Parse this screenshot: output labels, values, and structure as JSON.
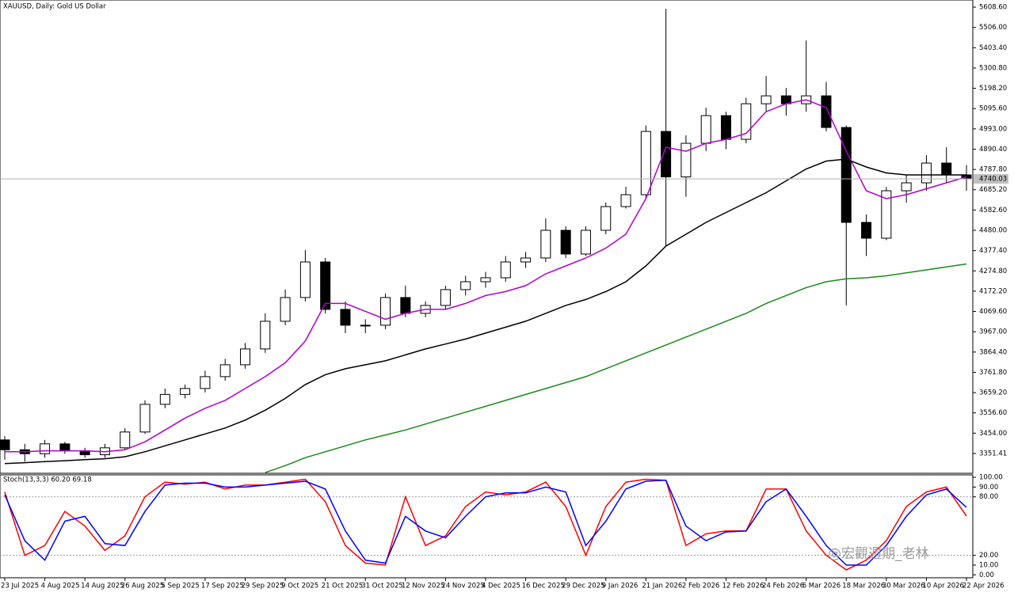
{
  "chart_data": [
    {
      "type": "candlestick",
      "title": "XAUUSD, Daily: Gold US Dollar",
      "categories": [
        "23 Jul 2025",
        null,
        "4 Aug 2025",
        null,
        "14 Aug 2025",
        null,
        "26 Aug 2025",
        null,
        "5 Sep 2025",
        null,
        "17 Sep 2025",
        null,
        "29 Sep 2025",
        null,
        "9 Oct 2025",
        null,
        "21 Oct 2025",
        null,
        "31 Oct 2025",
        null,
        "12 Nov 2025",
        null,
        "24 Nov 2025",
        null,
        "4 Dec 2025",
        null,
        "16 Dec 2025",
        null,
        "29 Dec 2025",
        null,
        "9 Jan 2026",
        null,
        "21 Jan 2026",
        null,
        "2 Feb 2026",
        null,
        "12 Feb 2026",
        null,
        "24 Feb 2026",
        null,
        "6 Mar 2026",
        null,
        "18 Mar 2026",
        null,
        "30 Mar 2026",
        null,
        "10 Apr 2026",
        null,
        "22 Apr 2026"
      ],
      "open": [
        3420,
        3370,
        3350,
        3400,
        3365,
        3345,
        3380,
        3460,
        3600,
        3650,
        3680,
        3740,
        3800,
        3880,
        4020,
        4140,
        4320,
        4080,
        4000,
        4000,
        4140,
        4060,
        4100,
        4180,
        4220,
        4240,
        4320,
        4340,
        4480,
        4360,
        4480,
        4600,
        4660,
        4980,
        4750,
        4920,
        5060,
        4940,
        5120,
        5160,
        5120,
        5160,
        5000,
        4520,
        4440,
        4680,
        4720,
        4820,
        4760
      ],
      "high": [
        3440,
        3400,
        3420,
        3410,
        3380,
        3400,
        3480,
        3620,
        3680,
        3700,
        3770,
        3830,
        3910,
        4060,
        4180,
        4380,
        4340,
        4120,
        4030,
        4160,
        4200,
        4120,
        4200,
        4250,
        4270,
        4350,
        4370,
        4540,
        4500,
        4500,
        4620,
        4700,
        5010,
        5600,
        4960,
        5100,
        5080,
        5150,
        5260,
        5200,
        5440,
        5230,
        5010,
        4560,
        4700,
        4760,
        4860,
        4900,
        4810
      ],
      "low": [
        3320,
        3310,
        3330,
        3350,
        3330,
        3330,
        3370,
        3450,
        3580,
        3630,
        3660,
        3720,
        3780,
        3860,
        4000,
        4120,
        4060,
        3960,
        3960,
        3980,
        4040,
        4040,
        4080,
        4150,
        4190,
        4220,
        4290,
        4320,
        4340,
        4350,
        4460,
        4590,
        4640,
        4400,
        4650,
        4880,
        4890,
        4920,
        5080,
        5060,
        5080,
        4980,
        4100,
        4350,
        4430,
        4620,
        4680,
        4720,
        4680
      ],
      "close": [
        3370,
        3350,
        3400,
        3365,
        3345,
        3380,
        3460,
        3600,
        3650,
        3680,
        3740,
        3800,
        3880,
        4020,
        4140,
        4320,
        4080,
        4000,
        4000,
        4140,
        4060,
        4100,
        4180,
        4220,
        4240,
        4320,
        4340,
        4480,
        4360,
        4480,
        4600,
        4660,
        4980,
        4750,
        4920,
        5060,
        4940,
        5120,
        5160,
        5120,
        5160,
        5000,
        4520,
        4440,
        4680,
        4720,
        4820,
        4760,
        4740
      ],
      "up_color": "#ffffff",
      "down_color": "#000000",
      "lines": [
        {
          "color": "#b000d0",
          "values": [
            3360,
            3360,
            3365,
            3365,
            3365,
            3360,
            3370,
            3410,
            3470,
            3530,
            3580,
            3620,
            3680,
            3740,
            3810,
            3920,
            4110,
            4110,
            4070,
            4030,
            4060,
            4080,
            4080,
            4110,
            4150,
            4170,
            4200,
            4260,
            4300,
            4340,
            4390,
            4460,
            4640,
            4900,
            4880,
            4920,
            4940,
            4970,
            5080,
            5120,
            5140,
            5100,
            4880,
            4680,
            4640,
            4660,
            4690,
            4720,
            4750
          ]
        },
        {
          "color": "#000000",
          "values": [
            3300,
            3305,
            3310,
            3315,
            3320,
            3325,
            3335,
            3360,
            3390,
            3420,
            3450,
            3480,
            3520,
            3570,
            3630,
            3700,
            3750,
            3780,
            3800,
            3820,
            3850,
            3880,
            3905,
            3930,
            3960,
            3990,
            4020,
            4060,
            4100,
            4130,
            4170,
            4220,
            4300,
            4400,
            4460,
            4520,
            4570,
            4620,
            4670,
            4730,
            4790,
            4830,
            4840,
            4800,
            4770,
            4760,
            4760,
            4760,
            4760
          ]
        },
        {
          "color": "#1a8a1a",
          "values": [
            null,
            null,
            null,
            null,
            null,
            null,
            null,
            null,
            null,
            null,
            null,
            null,
            null,
            3255,
            3290,
            3330,
            3360,
            3390,
            3420,
            3445,
            3470,
            3500,
            3530,
            3560,
            3590,
            3620,
            3650,
            3680,
            3710,
            3740,
            3780,
            3820,
            3860,
            3900,
            3940,
            3980,
            4020,
            4060,
            4110,
            4150,
            4190,
            4220,
            4235,
            4240,
            4250,
            4265,
            4280,
            4295,
            4310
          ]
        }
      ],
      "current_price": 4740.03,
      "ylim": [
        3251.2,
        5644.7
      ],
      "yticks": [
        {
          "value": 5608.6,
          "label": "5608.60"
        },
        {
          "value": 5506,
          "label": "5506.00"
        },
        {
          "value": 5403.4,
          "label": "5403.40"
        },
        {
          "value": 5300.8,
          "label": "5300.80"
        },
        {
          "value": 5198.2,
          "label": "5198.20"
        },
        {
          "value": 5095.6,
          "label": "5095.60"
        },
        {
          "value": 4993,
          "label": "4993.00"
        },
        {
          "value": 4890.4,
          "label": "4890.40"
        },
        {
          "value": 4787.8,
          "label": "4787.80"
        },
        {
          "value": 4685.2,
          "label": "4685.20"
        },
        {
          "value": 4582.6,
          "label": "4582.60"
        },
        {
          "value": 4480,
          "label": "4480.00"
        },
        {
          "value": 4377.4,
          "label": "4377.40"
        },
        {
          "value": 4274.8,
          "label": "4274.80"
        },
        {
          "value": 4172.2,
          "label": "4172.20"
        },
        {
          "value": 4069.6,
          "label": "4069.60"
        },
        {
          "value": 3967,
          "label": "3967.00"
        },
        {
          "value": 3864.4,
          "label": "3864.40"
        },
        {
          "value": 3761.8,
          "label": "3761.80"
        },
        {
          "value": 3659.2,
          "label": "3659.20"
        },
        {
          "value": 3556.6,
          "label": "3556.60"
        },
        {
          "value": 3454,
          "label": "3454.00"
        },
        3351.41
      ]
    },
    {
      "type": "stochastic",
      "title": "Stoch(13,3,3) 60.20 69.18",
      "series": [
        {
          "color": "#ff0000",
          "values": [
            85,
            20,
            30,
            65,
            50,
            25,
            40,
            80,
            95,
            93,
            95,
            88,
            92,
            92,
            95,
            98,
            75,
            30,
            12,
            10,
            80,
            30,
            40,
            70,
            85,
            82,
            85,
            95,
            70,
            20,
            70,
            95,
            98,
            97,
            30,
            42,
            45,
            45,
            88,
            88,
            45,
            20,
            5,
            15,
            35,
            70,
            85,
            90,
            60.2
          ]
        },
        {
          "color": "#0000ff",
          "values": [
            82,
            35,
            15,
            55,
            60,
            32,
            30,
            65,
            92,
            94,
            94,
            90,
            90,
            92,
            94,
            96,
            88,
            45,
            15,
            12,
            60,
            45,
            38,
            60,
            80,
            84,
            84,
            90,
            85,
            30,
            55,
            88,
            96,
            97,
            50,
            35,
            44,
            45,
            75,
            88,
            60,
            30,
            10,
            10,
            30,
            60,
            82,
            88,
            69.18
          ]
        }
      ],
      "levels": [
        80,
        20
      ],
      "ylim": [
        -3,
        102.5
      ],
      "yticks": [
        {
          "value": 100,
          "label": "100.00"
        },
        {
          "value": 90,
          "label": "90.00"
        },
        {
          "value": 80,
          "label": "80.00"
        },
        {
          "value": 20,
          "label": "20.00"
        },
        {
          "value": 10,
          "label": "10.00"
        },
        {
          "value": 0,
          "label": "0.00"
        }
      ]
    }
  ],
  "watermark": "@宏觀週期_老林"
}
